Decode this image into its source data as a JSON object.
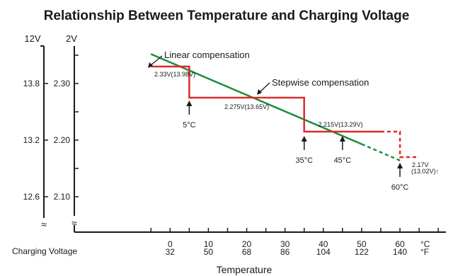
{
  "chart_data": {
    "type": "line",
    "title": "Relationship Between Temperature and Charging Voltage",
    "xlabel": "Temperature",
    "x_row_label": "Charging Voltage",
    "x_unit_c": "°C",
    "x_unit_f": "°F",
    "xlim": [
      -25,
      72
    ],
    "x_ticks_c": [
      0,
      10,
      20,
      30,
      40,
      50,
      60
    ],
    "x_ticks_f": [
      "32",
      "50",
      "68",
      "86",
      "104",
      "122",
      "140"
    ],
    "y_axis_cell": {
      "label_top": "2V",
      "ticks": [
        {
          "value": 2.3,
          "label": "2.30"
        },
        {
          "value": 2.2,
          "label": "2.20"
        },
        {
          "value": 2.1,
          "label": "2.10"
        }
      ]
    },
    "y_axis_battery": {
      "label_top": "12V",
      "ticks": [
        {
          "value": 2.3,
          "label": "13.8"
        },
        {
          "value": 2.2,
          "label": "13.2"
        },
        {
          "value": 2.1,
          "label": "12.6"
        }
      ]
    },
    "axis_break_symbol": "≈",
    "series": [
      {
        "name": "Linear compensation",
        "color": "#1a8f3a",
        "x": [
          -5,
          50
        ],
        "y": [
          2.352,
          2.193
        ],
        "dashed_extension": {
          "x": [
            50,
            60
          ],
          "y": [
            2.193,
            2.164
          ]
        }
      },
      {
        "name": "Stepwise compensation",
        "color": "#dd2a2a",
        "x": [
          -5,
          5,
          5,
          35,
          35,
          55
        ],
        "y": [
          2.33,
          2.33,
          2.275,
          2.275,
          2.215,
          2.215
        ],
        "dashed_extension": {
          "x": [
            55,
            60,
            60,
            65
          ],
          "y": [
            2.215,
            2.215,
            2.17,
            2.17
          ]
        }
      }
    ],
    "step_labels": [
      {
        "text": "2.33V(13.98V)",
        "x": -4.5,
        "y": 2.33
      },
      {
        "text": "2.275V(13.65V)",
        "x": 20,
        "y": 2.275
      },
      {
        "text": "2.215V(13.29V)",
        "x": 44.5,
        "y": 2.215
      }
    ],
    "end_label": {
      "line1": "2.17V",
      "line2": "(13.02V)↑"
    },
    "temp_markers": [
      {
        "x": 5,
        "label": "5°C"
      },
      {
        "x": 35,
        "label": "35°C"
      },
      {
        "x": 45,
        "label": "45°C"
      },
      {
        "x": 60,
        "label": "60°C"
      }
    ]
  }
}
